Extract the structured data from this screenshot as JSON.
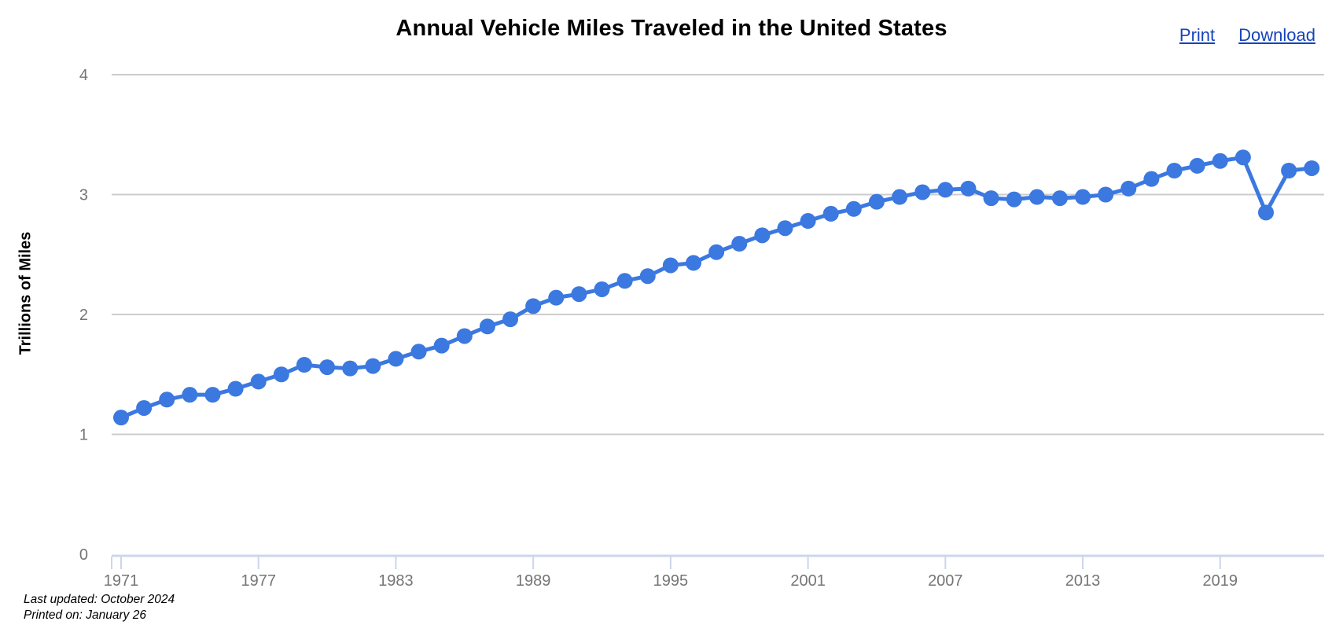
{
  "header": {
    "title": "Annual Vehicle Miles Traveled in the United States",
    "print_label": "Print",
    "download_label": "Download"
  },
  "footer": {
    "last_updated": "Last updated: October 2024",
    "printed_on": "Printed on: January 26"
  },
  "chart_data": {
    "type": "line",
    "title": "Annual Vehicle Miles Traveled in the United States",
    "xlabel": "",
    "ylabel": "Trillions of Miles",
    "ylim": [
      0,
      4
    ],
    "y_ticks": [
      0,
      1,
      2,
      3,
      4
    ],
    "x_ticks": [
      1971,
      1977,
      1983,
      1989,
      1995,
      2001,
      2007,
      2013,
      2019
    ],
    "grid": true,
    "legend": "none",
    "x": [
      1971,
      1972,
      1973,
      1974,
      1975,
      1976,
      1977,
      1978,
      1979,
      1980,
      1981,
      1982,
      1983,
      1984,
      1985,
      1986,
      1987,
      1988,
      1989,
      1990,
      1991,
      1992,
      1993,
      1994,
      1995,
      1996,
      1997,
      1998,
      1999,
      2000,
      2001,
      2002,
      2003,
      2004,
      2005,
      2006,
      2007,
      2008,
      2009,
      2010,
      2011,
      2012,
      2013,
      2014,
      2015,
      2016,
      2017,
      2018,
      2019,
      2020,
      2021,
      2022,
      2023
    ],
    "values": [
      1.14,
      1.22,
      1.29,
      1.33,
      1.33,
      1.38,
      1.44,
      1.5,
      1.58,
      1.56,
      1.55,
      1.57,
      1.63,
      1.69,
      1.74,
      1.82,
      1.9,
      1.96,
      2.07,
      2.14,
      2.17,
      2.21,
      2.28,
      2.32,
      2.41,
      2.43,
      2.52,
      2.59,
      2.66,
      2.72,
      2.78,
      2.84,
      2.88,
      2.94,
      2.98,
      3.02,
      3.04,
      3.05,
      2.97,
      2.96,
      2.98,
      2.97,
      2.98,
      3.0,
      3.05,
      3.13,
      3.2,
      3.24,
      3.28,
      3.31,
      2.85,
      3.2,
      3.22
    ],
    "line_color": "#3b78e0",
    "marker_color": "#3b78e0",
    "grid_color": "#cccccc",
    "axis_color": "#ccd6ec",
    "tick_label_color": "#757575"
  }
}
